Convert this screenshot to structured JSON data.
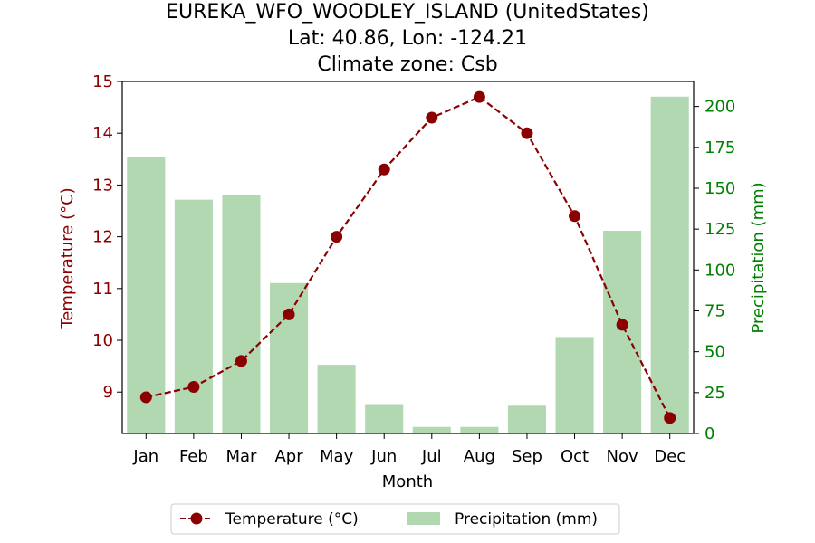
{
  "colors": {
    "temperature": "#8b0000",
    "precipitation": "#b2d8b2",
    "left_axis": "#8b0000",
    "right_axis": "#008000"
  },
  "chart_data": {
    "type": "bar",
    "title_lines": [
      "EUREKA_WFO_WOODLEY_ISLAND (UnitedStates)",
      "Lat: 40.86, Lon: -124.21",
      "Climate zone: Csb"
    ],
    "categories": [
      "Jan",
      "Feb",
      "Mar",
      "Apr",
      "May",
      "Jun",
      "Jul",
      "Aug",
      "Sep",
      "Oct",
      "Nov",
      "Dec"
    ],
    "xlabel": "Month",
    "ylabel_left": "Temperature (°C)",
    "ylabel_right": "Precipitation (mm)",
    "ylim_left": [
      8.2,
      15
    ],
    "ylim_right": [
      0,
      215.3
    ],
    "left_ticks": [
      9,
      10,
      11,
      12,
      13,
      14,
      15
    ],
    "right_ticks": [
      0,
      25,
      50,
      75,
      100,
      125,
      150,
      175,
      200
    ],
    "series": [
      {
        "name": "Temperature (°C)",
        "type": "line",
        "axis": "left",
        "values": [
          8.9,
          9.1,
          9.6,
          10.5,
          12.0,
          13.3,
          14.3,
          14.7,
          14.0,
          12.4,
          10.3,
          8.5
        ]
      },
      {
        "name": "Precipitation (mm)",
        "type": "bar",
        "axis": "right",
        "values": [
          169,
          143,
          146,
          92,
          42,
          18,
          4,
          4,
          17,
          59,
          124,
          206
        ]
      }
    ],
    "legend_position": "bottom-center",
    "grid": false
  }
}
